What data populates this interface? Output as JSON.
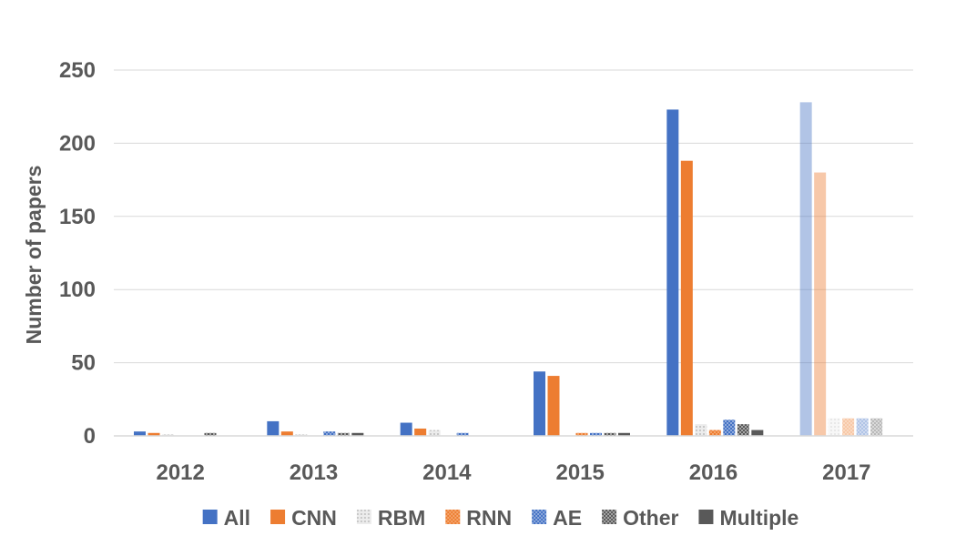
{
  "chart_data": {
    "type": "bar",
    "title": "",
    "xlabel": "",
    "ylabel": "Number of papers",
    "ylim": [
      0,
      250
    ],
    "yticks": [
      "0",
      "50",
      "100",
      "150",
      "200",
      "250"
    ],
    "grid": true,
    "legend_position": "bottom",
    "categories": [
      "2012",
      "2013",
      "2014",
      "2015",
      "2016",
      "2017"
    ],
    "series": [
      {
        "name": "All",
        "color": "#4472C4",
        "pattern": "solid",
        "values": [
          3,
          10,
          9,
          44,
          223,
          228
        ]
      },
      {
        "name": "CNN",
        "color": "#ED7D31",
        "pattern": "solid",
        "values": [
          2,
          3,
          5,
          41,
          188,
          180
        ]
      },
      {
        "name": "RBM",
        "color": "#D9D9D9",
        "pattern": "light-dots",
        "values": [
          1,
          1,
          4,
          0,
          8,
          12
        ]
      },
      {
        "name": "RNN",
        "color": "#ED7D31",
        "pattern": "dots",
        "values": [
          0,
          0,
          0,
          2,
          4,
          12
        ]
      },
      {
        "name": "AE",
        "color": "#4472C4",
        "pattern": "dots",
        "values": [
          0,
          3,
          2,
          2,
          11,
          12
        ]
      },
      {
        "name": "Other",
        "color": "#7F7F7F",
        "pattern": "checker",
        "values": [
          2,
          2,
          0,
          2,
          8,
          12
        ]
      },
      {
        "name": "Multiple",
        "color": "#595959",
        "pattern": "solid",
        "values": [
          0,
          2,
          0,
          2,
          4,
          0
        ]
      }
    ],
    "faded_categories": [
      "2017"
    ]
  }
}
